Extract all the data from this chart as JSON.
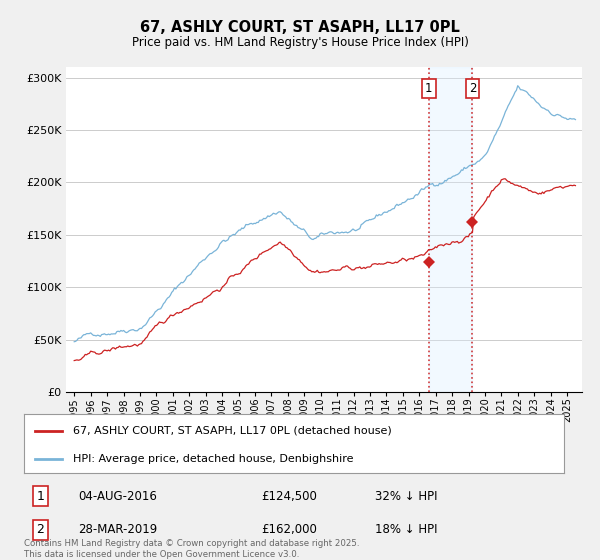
{
  "title": "67, ASHLY COURT, ST ASAPH, LL17 0PL",
  "subtitle": "Price paid vs. HM Land Registry's House Price Index (HPI)",
  "hpi_label": "HPI: Average price, detached house, Denbighshire",
  "property_label": "67, ASHLY COURT, ST ASAPH, LL17 0PL (detached house)",
  "hpi_color": "#7ab4d8",
  "property_color": "#cc2222",
  "vline_color": "#cc2222",
  "highlight_fill": "#dceeff",
  "ylim": [
    0,
    310000
  ],
  "yticks": [
    0,
    50000,
    100000,
    150000,
    200000,
    250000,
    300000
  ],
  "ytick_labels": [
    "£0",
    "£50K",
    "£100K",
    "£150K",
    "£200K",
    "£250K",
    "£300K"
  ],
  "sale1_date": "04-AUG-2016",
  "sale1_price": 124500,
  "sale1_label": "32% ↓ HPI",
  "sale1_x": 2016.58,
  "sale2_date": "28-MAR-2019",
  "sale2_price": 162000,
  "sale2_label": "18% ↓ HPI",
  "sale2_x": 2019.23,
  "footnote": "Contains HM Land Registry data © Crown copyright and database right 2025.\nThis data is licensed under the Open Government Licence v3.0.",
  "background_color": "#f0f0f0",
  "plot_background": "#ffffff",
  "grid_color": "#cccccc"
}
